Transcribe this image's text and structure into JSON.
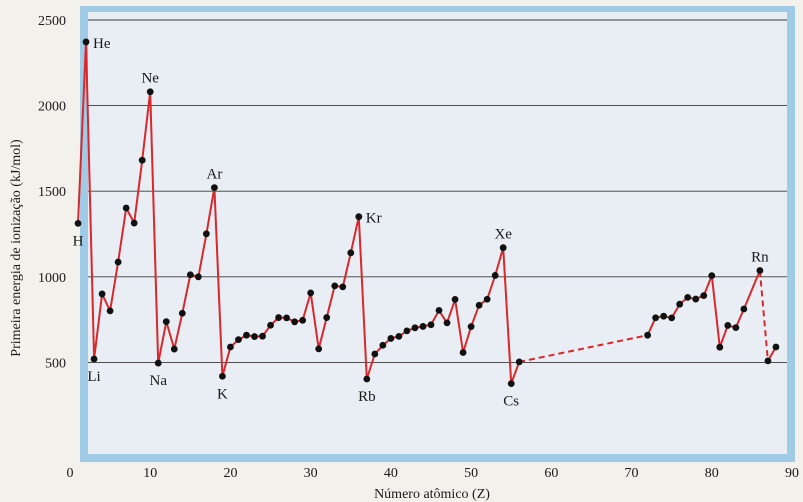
{
  "chart_data": {
    "type": "line",
    "title": "",
    "xlabel": "Número atômico (Z)",
    "ylabel": "Primeira energia de ionização (kJ/mol)",
    "xlim": [
      0,
      90
    ],
    "ylim": [
      0,
      2500
    ],
    "x_ticks": [
      0,
      10,
      20,
      30,
      40,
      50,
      60,
      70,
      80,
      90
    ],
    "y_ticks": [
      500,
      1000,
      1500,
      2000,
      2500
    ],
    "grid": "horizontal",
    "colors": {
      "line": "#d8282c",
      "points": "#111111",
      "frame": "#8fc3e3",
      "panel": "#e9eff4"
    },
    "series": [
      {
        "style": "solid",
        "points": [
          [
            1,
            1312
          ],
          [
            2,
            2372
          ],
          [
            3,
            520
          ],
          [
            4,
            900
          ],
          [
            5,
            801
          ],
          [
            6,
            1086
          ],
          [
            7,
            1402
          ],
          [
            8,
            1314
          ],
          [
            9,
            1681
          ],
          [
            10,
            2081
          ],
          [
            11,
            496
          ],
          [
            12,
            738
          ],
          [
            13,
            578
          ],
          [
            14,
            787
          ],
          [
            15,
            1012
          ],
          [
            16,
            1000
          ],
          [
            17,
            1251
          ],
          [
            18,
            1521
          ],
          [
            19,
            419
          ],
          [
            20,
            590
          ],
          [
            21,
            633
          ],
          [
            22,
            659
          ],
          [
            23,
            651
          ],
          [
            24,
            653
          ],
          [
            25,
            717
          ],
          [
            26,
            762
          ],
          [
            27,
            760
          ],
          [
            28,
            737
          ],
          [
            29,
            746
          ],
          [
            30,
            906
          ],
          [
            31,
            579
          ],
          [
            32,
            762
          ],
          [
            33,
            947
          ],
          [
            34,
            941
          ],
          [
            35,
            1140
          ],
          [
            36,
            1351
          ],
          [
            37,
            403
          ],
          [
            38,
            549
          ],
          [
            39,
            600
          ],
          [
            40,
            640
          ],
          [
            41,
            652
          ],
          [
            42,
            684
          ],
          [
            43,
            702
          ],
          [
            44,
            710
          ],
          [
            45,
            720
          ],
          [
            46,
            804
          ],
          [
            47,
            731
          ],
          [
            48,
            868
          ],
          [
            49,
            558
          ],
          [
            50,
            709
          ],
          [
            51,
            834
          ],
          [
            52,
            869
          ],
          [
            53,
            1008
          ],
          [
            54,
            1170
          ],
          [
            55,
            376
          ],
          [
            56,
            503
          ]
        ]
      },
      {
        "style": "dashed",
        "points": [
          [
            56,
            503
          ],
          [
            72,
            659
          ]
        ]
      },
      {
        "style": "solid",
        "points": [
          [
            72,
            659
          ],
          [
            73,
            761
          ],
          [
            74,
            770
          ],
          [
            75,
            760
          ],
          [
            76,
            840
          ],
          [
            77,
            880
          ],
          [
            78,
            870
          ],
          [
            79,
            890
          ],
          [
            80,
            1007
          ],
          [
            81,
            589
          ],
          [
            82,
            716
          ],
          [
            83,
            703
          ],
          [
            84,
            812
          ],
          [
            86,
            1037
          ]
        ]
      },
      {
        "style": "dashed",
        "points": [
          [
            86,
            1037
          ],
          [
            87,
            509
          ]
        ]
      },
      {
        "style": "solid",
        "points": [
          [
            87,
            509
          ],
          [
            88,
            590
          ]
        ]
      }
    ],
    "labels": [
      {
        "text": "H",
        "z": 1,
        "ie": 1312,
        "pos": "below"
      },
      {
        "text": "He",
        "z": 2,
        "ie": 2372,
        "pos": "right"
      },
      {
        "text": "Li",
        "z": 3,
        "ie": 520,
        "pos": "below"
      },
      {
        "text": "Ne",
        "z": 10,
        "ie": 2081,
        "pos": "above"
      },
      {
        "text": "Na",
        "z": 11,
        "ie": 496,
        "pos": "below"
      },
      {
        "text": "Ar",
        "z": 18,
        "ie": 1521,
        "pos": "above"
      },
      {
        "text": "K",
        "z": 19,
        "ie": 419,
        "pos": "below"
      },
      {
        "text": "Kr",
        "z": 36,
        "ie": 1351,
        "pos": "right"
      },
      {
        "text": "Rb",
        "z": 37,
        "ie": 403,
        "pos": "below"
      },
      {
        "text": "Xe",
        "z": 54,
        "ie": 1170,
        "pos": "above"
      },
      {
        "text": "Cs",
        "z": 55,
        "ie": 376,
        "pos": "below"
      },
      {
        "text": "Rn",
        "z": 86,
        "ie": 1037,
        "pos": "above"
      }
    ]
  }
}
